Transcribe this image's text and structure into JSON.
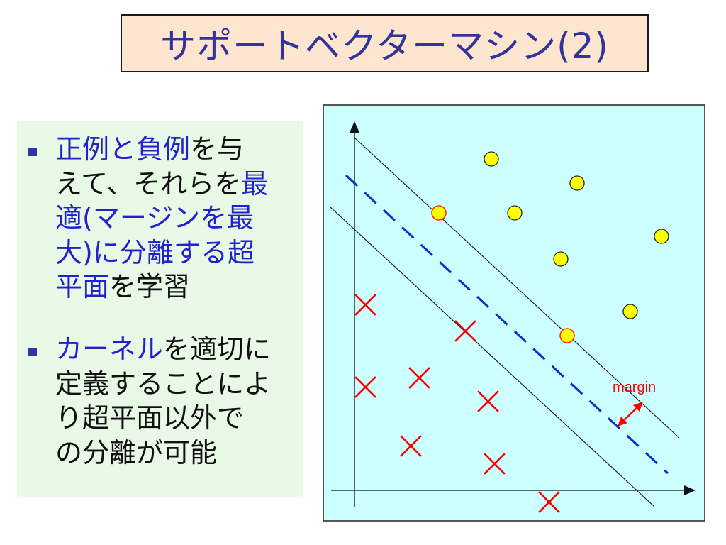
{
  "title": "サポートベクターマシン(2)",
  "bullets": [
    {
      "lines": [
        [
          {
            "t": "正例と負例",
            "hl": true
          },
          {
            "t": "を与",
            "hl": false
          }
        ],
        [
          {
            "t": "えて、それらを",
            "hl": false
          },
          {
            "t": "最",
            "hl": true
          }
        ],
        [
          {
            "t": "適(マージンを最",
            "hl": true
          }
        ],
        [
          {
            "t": "大)に分離する超",
            "hl": true
          }
        ],
        [
          {
            "t": "平面",
            "hl": true
          },
          {
            "t": "を学習",
            "hl": false
          }
        ]
      ]
    },
    {
      "lines": [
        [
          {
            "t": "カーネル",
            "hl": true
          },
          {
            "t": "を適切に",
            "hl": false
          }
        ],
        [
          {
            "t": "定義することによ",
            "hl": false
          }
        ],
        [
          {
            "t": "り超平面以外で",
            "hl": false
          }
        ],
        [
          {
            "t": "の分離が可能",
            "hl": false
          }
        ]
      ]
    }
  ],
  "diagram": {
    "margin_label": "margin",
    "colors": {
      "background": "#ccffff",
      "positive_fill": "#ffff00",
      "support_vector_outline": "#ff3300",
      "negative": "#ff0000",
      "hyperplane": "#0033cc",
      "margin_arrow": "#ff0000",
      "label": "#ff0000"
    }
  }
}
